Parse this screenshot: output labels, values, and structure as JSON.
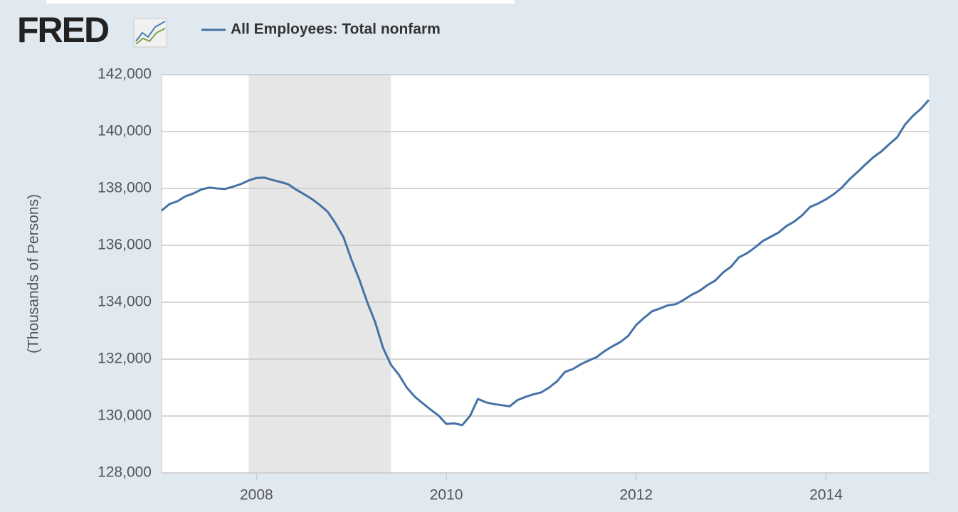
{
  "logo": "FRED",
  "chart_data": {
    "type": "line",
    "y_label": "(Thousands of Persons)",
    "x": [
      2007,
      2007.083,
      2007.167,
      2007.25,
      2007.333,
      2007.417,
      2007.5,
      2007.583,
      2007.667,
      2007.75,
      2007.833,
      2007.917,
      2008,
      2008.083,
      2008.167,
      2008.25,
      2008.333,
      2008.417,
      2008.5,
      2008.583,
      2008.667,
      2008.75,
      2008.833,
      2008.917,
      2009,
      2009.083,
      2009.167,
      2009.25,
      2009.333,
      2009.417,
      2009.5,
      2009.583,
      2009.667,
      2009.75,
      2009.833,
      2009.917,
      2010,
      2010.083,
      2010.167,
      2010.25,
      2010.333,
      2010.417,
      2010.5,
      2010.583,
      2010.667,
      2010.75,
      2010.833,
      2010.917,
      2011,
      2011.083,
      2011.167,
      2011.25,
      2011.333,
      2011.417,
      2011.5,
      2011.583,
      2011.667,
      2011.75,
      2011.833,
      2011.917,
      2012,
      2012.083,
      2012.167,
      2012.25,
      2012.333,
      2012.417,
      2012.5,
      2012.583,
      2012.667,
      2012.75,
      2012.833,
      2012.917,
      2013,
      2013.083,
      2013.167,
      2013.25,
      2013.333,
      2013.417,
      2013.5,
      2013.583,
      2013.667,
      2013.75,
      2013.833,
      2013.917,
      2014,
      2014.083,
      2014.167,
      2014.25,
      2014.333,
      2014.417,
      2014.5,
      2014.583,
      2014.667,
      2014.75,
      2014.833,
      2014.917,
      2015,
      2015.083
    ],
    "series": [
      {
        "name": "All Employees: Total nonfarm",
        "color": "#4572a7",
        "values": [
          137220,
          137450,
          137550,
          137720,
          137820,
          137960,
          138030,
          138000,
          137980,
          138060,
          138150,
          138280,
          138370,
          138380,
          138300,
          138230,
          138150,
          137960,
          137800,
          137630,
          137420,
          137180,
          136770,
          136280,
          135500,
          134800,
          134000,
          133300,
          132400,
          131800,
          131450,
          131000,
          130680,
          130450,
          130230,
          130020,
          129720,
          129740,
          129680,
          130000,
          130600,
          130480,
          130420,
          130380,
          130340,
          130560,
          130670,
          130760,
          130830,
          131000,
          131220,
          131550,
          131650,
          131820,
          131950,
          132070,
          132280,
          132450,
          132600,
          132820,
          133200,
          133450,
          133680,
          133780,
          133890,
          133930,
          134080,
          134260,
          134400,
          134600,
          134760,
          135050,
          135250,
          135580,
          135720,
          135920,
          136150,
          136300,
          136450,
          136680,
          136840,
          137060,
          137350,
          137470,
          137620,
          137800,
          138030,
          138330,
          138580,
          138850,
          139100,
          139300,
          139560,
          139800,
          140250,
          140560,
          140800,
          141110
        ]
      }
    ],
    "recession_x": [
      2007.917,
      2009.417
    ],
    "xlim": [
      2007,
      2015.083
    ],
    "xticks": [
      2008,
      2010,
      2012,
      2014
    ],
    "ylim": [
      128000,
      142000
    ],
    "yticks": [
      {
        "value": 128000,
        "label": "128,000"
      },
      {
        "value": 130000,
        "label": "130,000"
      },
      {
        "value": 132000,
        "label": "132,000"
      },
      {
        "value": 134000,
        "label": "134,000"
      },
      {
        "value": 136000,
        "label": "136,000"
      },
      {
        "value": 138000,
        "label": "138,000"
      },
      {
        "value": 140000,
        "label": "140,000"
      },
      {
        "value": 142000,
        "label": "142,000"
      }
    ],
    "grid": true
  }
}
